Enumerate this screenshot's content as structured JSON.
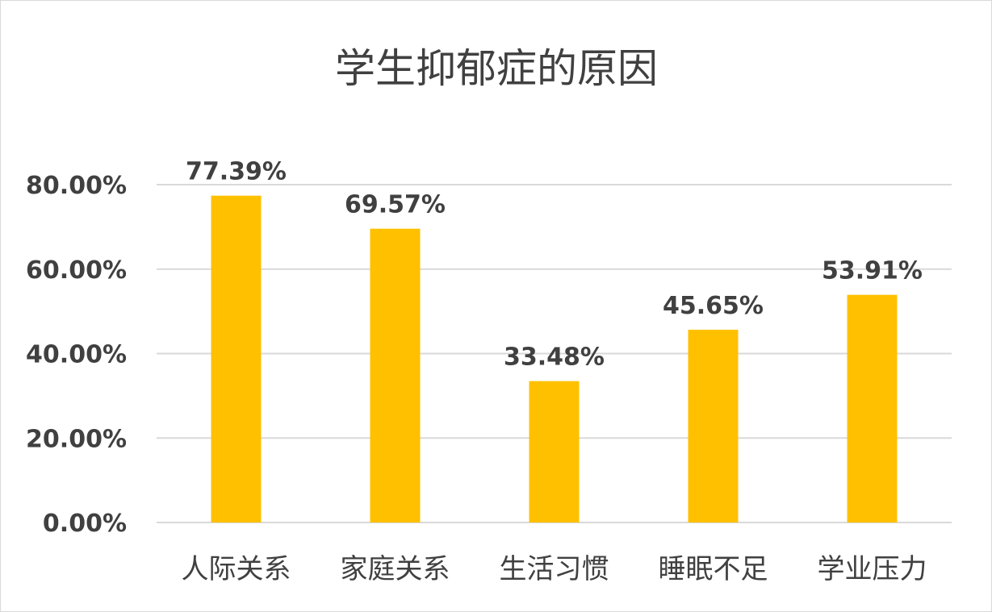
{
  "chart_data": {
    "type": "bar",
    "title": "学生抑郁症的原因",
    "categories": [
      "人际关系",
      "家庭关系",
      "生活习惯",
      "睡眠不足",
      "学业压力"
    ],
    "values": [
      77.39,
      69.57,
      33.48,
      45.65,
      53.91
    ],
    "data_labels": [
      "77.39%",
      "69.57%",
      "33.48%",
      "45.65%",
      "53.91%"
    ],
    "ylim": [
      0,
      80
    ],
    "yticks": [
      0,
      20,
      40,
      60,
      80
    ],
    "ytick_labels": [
      "0.00%",
      "20.00%",
      "40.00%",
      "60.00%",
      "80.00%"
    ],
    "xlabel": "",
    "ylabel": "",
    "grid": true,
    "legend": "none",
    "bar_color": "#FFC000",
    "grid_color": "#D9D9D9",
    "text_color": "#404040"
  }
}
